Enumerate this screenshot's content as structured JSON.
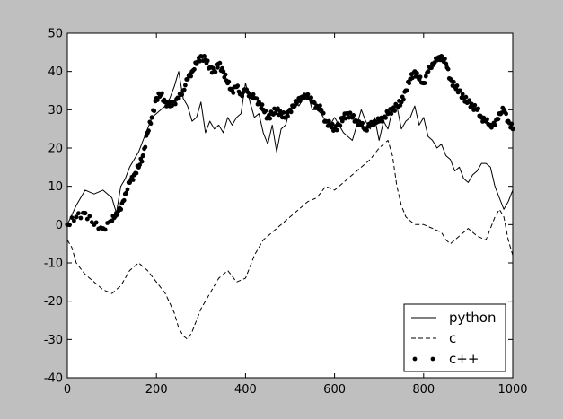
{
  "chart_data": {
    "type": "line",
    "title": "",
    "xlabel": "",
    "ylabel": "",
    "xlim": [
      0,
      1000
    ],
    "ylim": [
      -40,
      50
    ],
    "x_ticks": [
      0,
      200,
      400,
      600,
      800,
      1000
    ],
    "y_ticks": [
      -40,
      -30,
      -20,
      -10,
      0,
      10,
      20,
      30,
      40,
      50
    ],
    "grid": false,
    "legend_position": "lower-right",
    "series": [
      {
        "name": "python",
        "style": "solid",
        "color": "#000000",
        "x": [
          0,
          20,
          40,
          60,
          80,
          100,
          110,
          120,
          130,
          140,
          150,
          160,
          170,
          180,
          190,
          200,
          210,
          220,
          230,
          240,
          250,
          260,
          270,
          280,
          290,
          300,
          310,
          320,
          330,
          340,
          350,
          360,
          370,
          380,
          390,
          400,
          410,
          420,
          430,
          440,
          450,
          460,
          470,
          480,
          490,
          500,
          510,
          520,
          530,
          540,
          550,
          560,
          570,
          580,
          590,
          600,
          610,
          620,
          630,
          640,
          650,
          660,
          670,
          680,
          690,
          700,
          710,
          720,
          730,
          740,
          750,
          760,
          770,
          780,
          790,
          800,
          810,
          820,
          830,
          840,
          850,
          860,
          870,
          880,
          890,
          900,
          910,
          920,
          930,
          940,
          950,
          960,
          970,
          980,
          990,
          1000
        ],
        "y": [
          0,
          5,
          9,
          8,
          9,
          7,
          3,
          10,
          12,
          15,
          17,
          19,
          22,
          25,
          28,
          29,
          30,
          31,
          33,
          36,
          40,
          33,
          31,
          27,
          28,
          32,
          24,
          27,
          25,
          26,
          24,
          28,
          26,
          28,
          29,
          37,
          32,
          28,
          29,
          24,
          21,
          26,
          19,
          25,
          26,
          30,
          32,
          31,
          33,
          34,
          30,
          30,
          29,
          27,
          26,
          28,
          26,
          24,
          23,
          22,
          26,
          30,
          27,
          25,
          28,
          22,
          27,
          25,
          30,
          31,
          25,
          27,
          28,
          31,
          26,
          28,
          23,
          22,
          20,
          21,
          18,
          17,
          14,
          15,
          12,
          11,
          13,
          14,
          16,
          16,
          15,
          10,
          7,
          4,
          6,
          9
        ]
      },
      {
        "name": "c",
        "style": "dashed",
        "color": "#000000",
        "x": [
          0,
          10,
          20,
          40,
          60,
          80,
          100,
          120,
          140,
          160,
          180,
          200,
          220,
          240,
          250,
          260,
          270,
          280,
          300,
          320,
          340,
          360,
          380,
          400,
          420,
          440,
          460,
          480,
          500,
          520,
          540,
          560,
          580,
          600,
          620,
          640,
          660,
          680,
          700,
          720,
          730,
          740,
          750,
          760,
          770,
          780,
          800,
          820,
          840,
          850,
          860,
          880,
          900,
          920,
          940,
          960,
          970,
          980,
          990,
          1000
        ],
        "y": [
          -4,
          -6,
          -10,
          -13,
          -15,
          -17,
          -18,
          -16,
          -12,
          -10,
          -12,
          -15,
          -18,
          -23,
          -27,
          -29,
          -30,
          -28,
          -22,
          -18,
          -14,
          -12,
          -15,
          -14,
          -8,
          -4,
          -2,
          0,
          2,
          4,
          6,
          7,
          10,
          9,
          11,
          13,
          15,
          17,
          20,
          22,
          18,
          10,
          5,
          2,
          1,
          0,
          0,
          -1,
          -2,
          -4,
          -5,
          -3,
          -1,
          -3,
          -4,
          2,
          4,
          2,
          -4,
          -8
        ]
      },
      {
        "name": "c++",
        "style": "dots",
        "color": "#000000",
        "x": [
          0,
          20,
          40,
          60,
          80,
          100,
          110,
          120,
          130,
          140,
          150,
          160,
          170,
          180,
          190,
          200,
          210,
          220,
          230,
          240,
          250,
          260,
          270,
          280,
          290,
          300,
          310,
          320,
          330,
          340,
          350,
          360,
          370,
          380,
          390,
          400,
          410,
          420,
          430,
          440,
          450,
          460,
          470,
          480,
          490,
          500,
          510,
          520,
          530,
          540,
          550,
          560,
          570,
          580,
          590,
          600,
          610,
          620,
          630,
          640,
          650,
          660,
          670,
          680,
          690,
          700,
          710,
          720,
          730,
          740,
          750,
          760,
          770,
          780,
          790,
          800,
          810,
          820,
          830,
          840,
          850,
          860,
          870,
          880,
          890,
          900,
          910,
          920,
          930,
          940,
          950,
          960,
          970,
          980,
          990,
          1000
        ],
        "y": [
          0,
          2,
          3,
          0,
          -1,
          1,
          3,
          4,
          8,
          11,
          13,
          15,
          18,
          24,
          28,
          33,
          34,
          32,
          31,
          32,
          33,
          35,
          38,
          40,
          42,
          44,
          43,
          41,
          40,
          42,
          40,
          37,
          35,
          36,
          34,
          35,
          34,
          33,
          32,
          30,
          28,
          29,
          30,
          29,
          28,
          30,
          31,
          33,
          33,
          34,
          32,
          31,
          30,
          27,
          26,
          25,
          26,
          28,
          29,
          28,
          27,
          26,
          25,
          26,
          27,
          27,
          28,
          29,
          30,
          31,
          32,
          35,
          38,
          40,
          38,
          37,
          40,
          42,
          43,
          44,
          42,
          38,
          36,
          35,
          33,
          32,
          31,
          30,
          28,
          27,
          26,
          26,
          29,
          30,
          27,
          25
        ]
      }
    ]
  }
}
